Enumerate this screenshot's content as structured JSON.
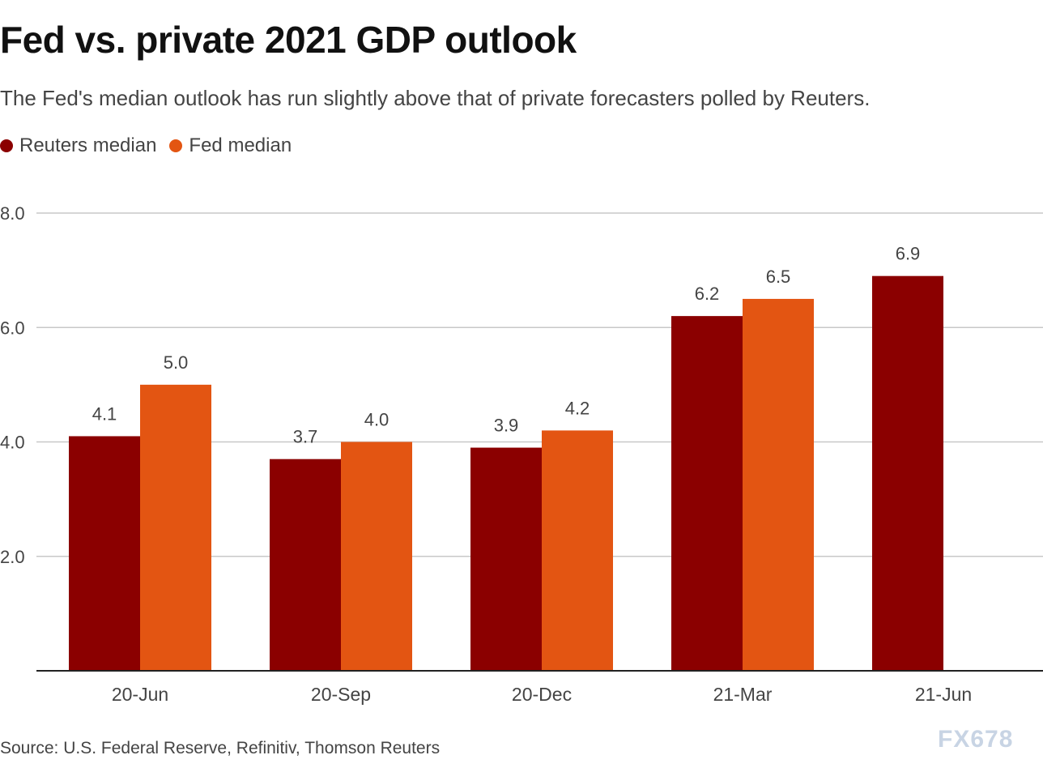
{
  "chart_data": {
    "type": "bar",
    "title": "Fed vs. private 2021 GDP outlook",
    "subtitle": "The Fed's median outlook has run slightly above that of private forecasters polled by Reuters.",
    "categories": [
      "20-Jun",
      "20-Sep",
      "20-Dec",
      "21-Mar",
      "21-Jun"
    ],
    "series": [
      {
        "name": "Reuters median",
        "color": "#8b0000",
        "values": [
          4.1,
          3.7,
          3.9,
          6.2,
          6.9
        ],
        "labels": [
          "4.1",
          "3.7",
          "3.9",
          "6.2",
          "6.9"
        ]
      },
      {
        "name": "Fed median",
        "color": "#e35512",
        "values": [
          5.0,
          4.0,
          4.2,
          6.5,
          null
        ],
        "labels": [
          "5.0",
          "4.0",
          "4.2",
          "6.5",
          null
        ]
      }
    ],
    "xlabel": "",
    "ylabel": "",
    "ylim": [
      0,
      8
    ],
    "yticks": [
      2,
      4,
      6,
      8
    ],
    "ytick_labels": [
      "2.0",
      "4.0",
      "6.0",
      "8.0"
    ],
    "grid": true,
    "legend_position": "top-left",
    "source": "Source: U.S. Federal Reserve, Refinitiv, Thomson Reuters"
  },
  "watermark": "FX678"
}
